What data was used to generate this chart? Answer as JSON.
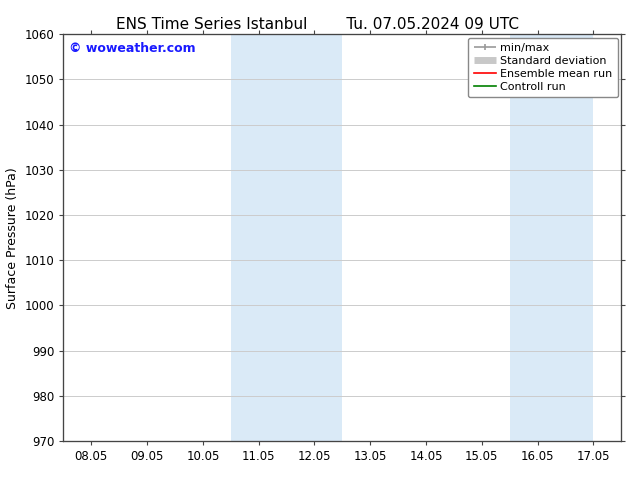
{
  "title_left": "ENS Time Series Istanbul",
  "title_right": "Tu. 07.05.2024 09 UTC",
  "ylabel": "Surface Pressure (hPa)",
  "ylim": [
    970,
    1060
  ],
  "yticks": [
    970,
    980,
    990,
    1000,
    1010,
    1020,
    1030,
    1040,
    1050,
    1060
  ],
  "xtick_labels": [
    "08.05",
    "09.05",
    "10.05",
    "11.05",
    "12.05",
    "13.05",
    "14.05",
    "15.05",
    "16.05",
    "17.05"
  ],
  "xtick_positions": [
    0,
    1,
    2,
    3,
    4,
    5,
    6,
    7,
    8,
    9
  ],
  "shaded_regions": [
    {
      "xstart": 3.0,
      "xend": 5.0
    },
    {
      "xstart": 8.0,
      "xend": 9.5
    }
  ],
  "shaded_color": "#daeaf7",
  "watermark": "© woweather.com",
  "watermark_color": "#1a1aff",
  "background_color": "#ffffff",
  "legend_items": [
    {
      "label": "min/max",
      "color": "#999999",
      "lw": 1.2
    },
    {
      "label": "Standard deviation",
      "color": "#c8c8c8",
      "lw": 5
    },
    {
      "label": "Ensemble mean run",
      "color": "#ff0000",
      "lw": 1.2
    },
    {
      "label": "Controll run",
      "color": "#008000",
      "lw": 1.2
    }
  ],
  "grid_color": "#cccccc",
  "title_fontsize": 11,
  "ylabel_fontsize": 9,
  "tick_fontsize": 8.5,
  "legend_fontsize": 8
}
